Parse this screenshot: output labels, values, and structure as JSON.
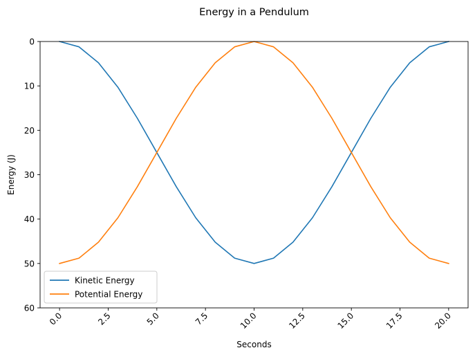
{
  "chart_data": {
    "type": "line",
    "title": "Energy in a Pendulum",
    "xlabel": "Seconds",
    "ylabel": "Energy (J)",
    "xlim": [
      -1,
      21
    ],
    "ylim": [
      60,
      0
    ],
    "y_axis_inverted": true,
    "xticks": [
      0.0,
      2.5,
      5.0,
      7.5,
      10.0,
      12.5,
      15.0,
      17.5,
      20.0
    ],
    "xtick_labels": [
      "0.0",
      "2.5",
      "5.0",
      "7.5",
      "10.0",
      "12.5",
      "15.0",
      "17.5",
      "20.0"
    ],
    "xtick_rotation": 45,
    "yticks": [
      0,
      10,
      20,
      30,
      40,
      50,
      60
    ],
    "ytick_labels": [
      "0",
      "10",
      "20",
      "30",
      "40",
      "50",
      "60"
    ],
    "grid": false,
    "legend_position": "lower-left",
    "x": [
      0,
      1,
      2,
      3,
      4,
      5,
      6,
      7,
      8,
      9,
      10,
      11,
      12,
      13,
      14,
      15,
      16,
      17,
      18,
      19,
      20
    ],
    "series": [
      {
        "name": "Kinetic Energy",
        "color": "#1f77b4",
        "values": [
          0.0,
          1.2,
          4.8,
          10.3,
          17.3,
          25.0,
          32.7,
          39.7,
          45.2,
          48.8,
          50.0,
          48.8,
          45.2,
          39.7,
          32.7,
          25.0,
          17.3,
          10.3,
          4.8,
          1.2,
          0.0
        ]
      },
      {
        "name": "Potential Energy",
        "color": "#ff7f0e",
        "values": [
          50.0,
          48.8,
          45.2,
          39.7,
          32.7,
          25.0,
          17.3,
          10.3,
          4.8,
          1.2,
          0.0,
          1.2,
          4.8,
          10.3,
          17.3,
          25.0,
          32.7,
          39.7,
          45.2,
          48.8,
          50.0
        ]
      }
    ]
  }
}
